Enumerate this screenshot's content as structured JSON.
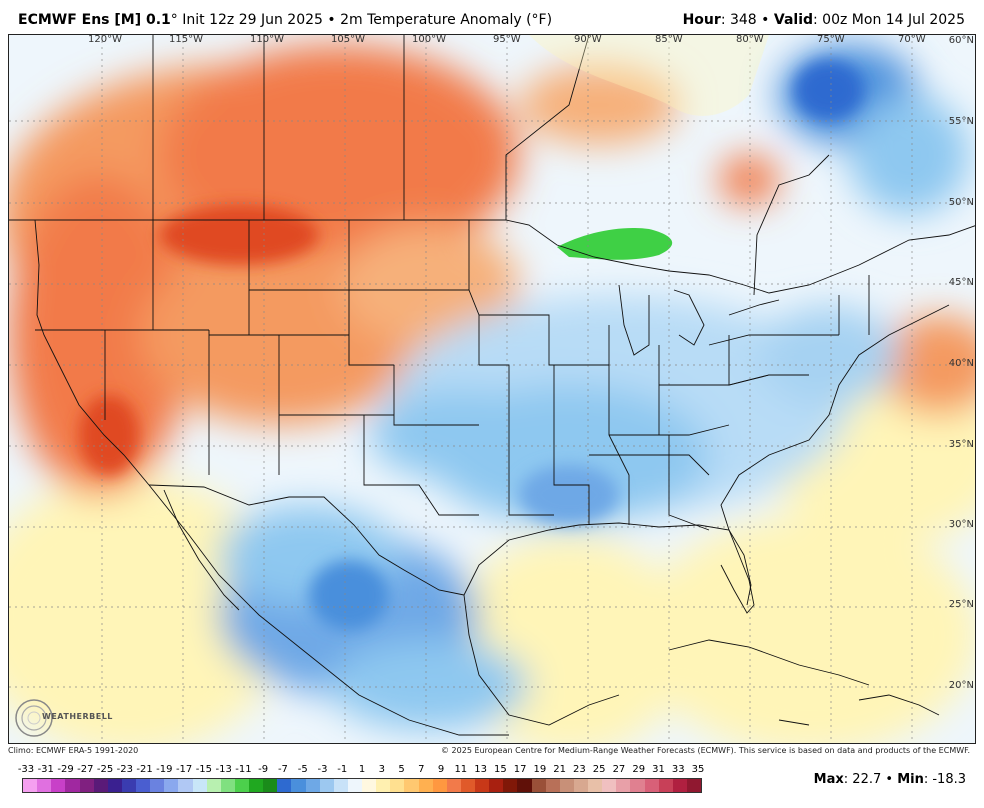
{
  "header": {
    "model": "ECMWF Ens [M] 0.1",
    "degree": "°",
    "init": "Init 12z 29 Jun 2025",
    "bullet": "•",
    "field": "2m Temperature Anomaly (°F)",
    "hour_label": "Hour",
    "hour_value": ": 348",
    "valid_label": "Valid",
    "valid_value": ": 00z Mon 14 Jul 2025"
  },
  "map": {
    "lon_labels": [
      "120°W",
      "115°W",
      "110°W",
      "105°W",
      "100°W",
      "95°W",
      "90°W",
      "85°W",
      "80°W",
      "75°W",
      "70°W"
    ],
    "lat_labels": [
      "60°N",
      "55°N",
      "50°N",
      "45°N",
      "40°N",
      "35°N",
      "30°N",
      "25°N",
      "20°N"
    ],
    "colors": {
      "warm": "#f27a4a",
      "hot": "#e04a22",
      "cool": "#8ec8f0",
      "cold": "#4a8fdc",
      "very_cold": "#2e6ad0",
      "neutral_warm": "#fff5b8",
      "neutral_cool": "#dff1fb",
      "green": "#3fd045"
    }
  },
  "footer": {
    "climo": "Climo: ECMWF ERA-5 1991-2020",
    "copyright": "© 2025 European Centre for Medium-Range Weather Forecasts (ECMWF). This service is based on data and products of the ECMWF."
  },
  "logo_text": "WEATHERBELL",
  "scale": {
    "labels": [
      "-33",
      "-31",
      "-29",
      "-27",
      "-25",
      "-23",
      "-21",
      "-19",
      "-17",
      "-15",
      "-13",
      "-11",
      "-9",
      "-7",
      "-5",
      "-3",
      "-1",
      "1",
      "3",
      "5",
      "7",
      "9",
      "11",
      "13",
      "15",
      "17",
      "19",
      "21",
      "23",
      "25",
      "27",
      "29",
      "31",
      "33",
      "35"
    ],
    "colors": [
      "#f5a0f0",
      "#e070e0",
      "#c840c8",
      "#a028a0",
      "#802080",
      "#5a1a78",
      "#3a2090",
      "#3a3cb0",
      "#4a5ed0",
      "#6a82e0",
      "#8aa8ee",
      "#b0c8f4",
      "#c8e6f8",
      "#b8f0b0",
      "#80e080",
      "#4cd04c",
      "#20a820",
      "#1a8c1a",
      "#2e6ad0",
      "#4a8fdc",
      "#6ea8e6",
      "#9cc8f0",
      "#c8e2f8",
      "#eef6fc",
      "#fff8e0",
      "#fff0b0",
      "#ffe090",
      "#ffc870",
      "#ffb050",
      "#ff9840",
      "#f27a4a",
      "#e05a2a",
      "#c83818",
      "#a82010",
      "#801808",
      "#601008",
      "#9a5038",
      "#b87058",
      "#c89078",
      "#d8a890",
      "#e8c0a8",
      "#f0c0c0",
      "#e8a0a8",
      "#e08090",
      "#d86078",
      "#c84058",
      "#b02040",
      "#901830"
    ]
  },
  "stats": {
    "max_label": "Max",
    "max_value": ": 22.7",
    "sep": " • ",
    "min_label": "Min",
    "min_value": ": -18.3"
  }
}
